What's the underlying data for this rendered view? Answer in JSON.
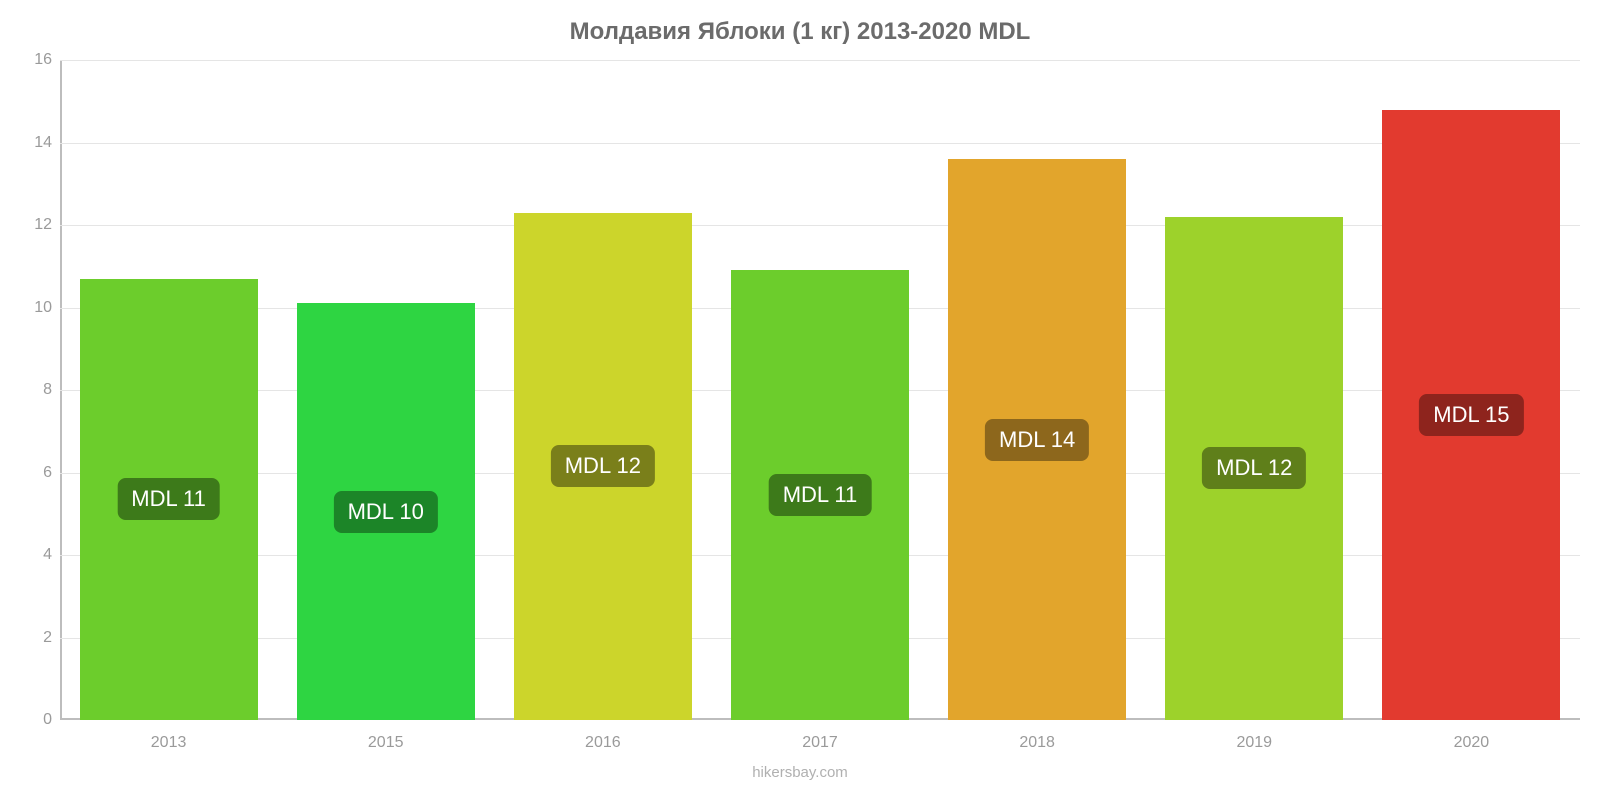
{
  "chart": {
    "type": "bar",
    "title": "Молдавия Яблоки (1 кг) 2013-2020 MDL",
    "title_fontsize": 24,
    "title_color": "#6b6b6b",
    "attribution": "hikersbay.com",
    "attribution_color": "#b0b0b0",
    "attribution_fontsize": 15,
    "background_color": "#ffffff",
    "grid_color": "#e5e5e5",
    "axis_color": "#bdbdbd",
    "tick_label_color": "#9a9a9a",
    "tick_label_fontsize": 16,
    "bar_width": 0.82,
    "badge_fontsize": 22,
    "badge_text_color": "#ffffff",
    "ylim": [
      0,
      16
    ],
    "ytick_step": 2,
    "yticks": [
      0,
      2,
      4,
      6,
      8,
      10,
      12,
      14,
      16
    ],
    "categories": [
      "2013",
      "2015",
      "2016",
      "2017",
      "2018",
      "2019",
      "2020"
    ],
    "values": [
      10.7,
      10.1,
      12.3,
      10.9,
      13.6,
      12.2,
      14.8
    ],
    "value_labels": [
      "MDL 11",
      "MDL 10",
      "MDL 12",
      "MDL 11",
      "MDL 14",
      "MDL 12",
      "MDL 15"
    ],
    "bar_colors": [
      "#6ccd2c",
      "#2ed542",
      "#ccd52b",
      "#6ccd2c",
      "#e2a52c",
      "#9dd22b",
      "#e23a2f"
    ],
    "badge_colors": [
      "#3d7a1a",
      "#1c8528",
      "#7a7f1a",
      "#3d7a1a",
      "#8d671c",
      "#5f7f1a",
      "#8e241d"
    ]
  }
}
